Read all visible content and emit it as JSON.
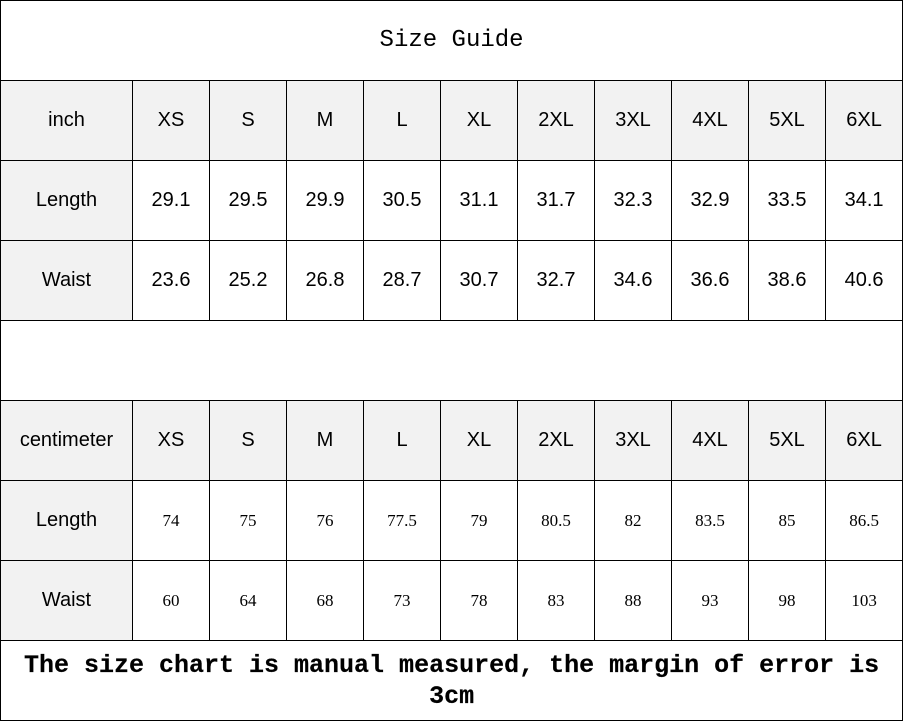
{
  "title": "Size Guide",
  "sizes": [
    "XS",
    "S",
    "M",
    "L",
    "XL",
    "2XL",
    "3XL",
    "4XL",
    "5XL",
    "6XL"
  ],
  "inch": {
    "unit_label": "inch",
    "rows": [
      {
        "label": "Length",
        "values": [
          "29.1",
          "29.5",
          "29.9",
          "30.5",
          "31.1",
          "31.7",
          "32.3",
          "32.9",
          "33.5",
          "34.1"
        ]
      },
      {
        "label": "Waist",
        "values": [
          "23.6",
          "25.2",
          "26.8",
          "28.7",
          "30.7",
          "32.7",
          "34.6",
          "36.6",
          "38.6",
          "40.6"
        ]
      }
    ]
  },
  "centimeter": {
    "unit_label": "centimeter",
    "rows": [
      {
        "label": "Length",
        "values": [
          "74",
          "75",
          "76",
          "77.5",
          "79",
          "80.5",
          "82",
          "83.5",
          "85",
          "86.5"
        ]
      },
      {
        "label": "Waist",
        "values": [
          "60",
          "64",
          "68",
          "73",
          "78",
          "83",
          "88",
          "93",
          "98",
          "103"
        ]
      }
    ]
  },
  "footer": "The size chart is manual measured, the margin of error is 3cm",
  "colors": {
    "header_bg": "#f2f2f2",
    "border": "#000000"
  }
}
